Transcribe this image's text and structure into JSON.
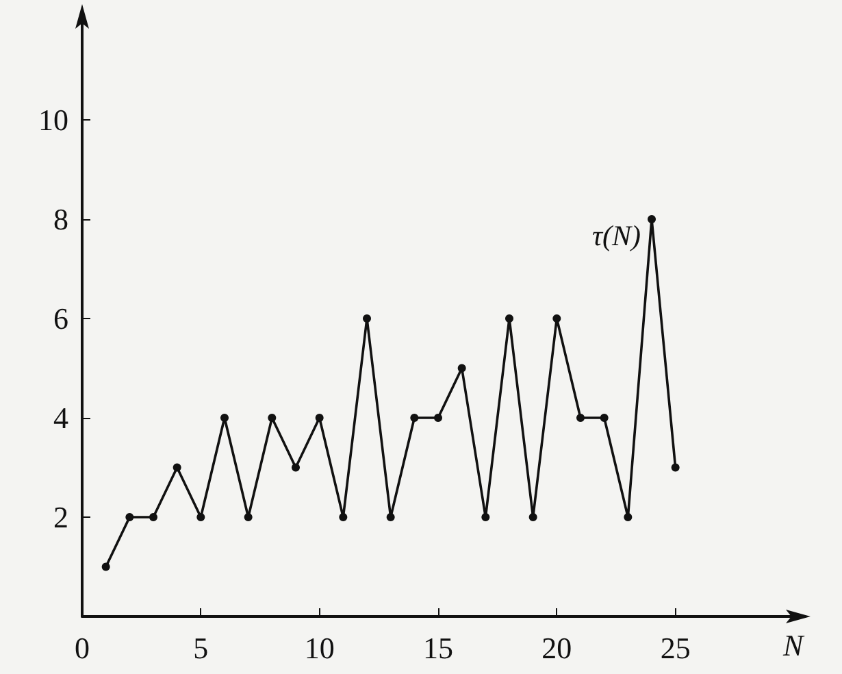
{
  "chart_data": {
    "type": "line",
    "xlabel": "N",
    "x": [
      1,
      2,
      3,
      4,
      5,
      6,
      7,
      8,
      9,
      10,
      11,
      12,
      13,
      14,
      15,
      16,
      17,
      18,
      19,
      20,
      21,
      22,
      23,
      24,
      25
    ],
    "series": [
      {
        "color": "#111111",
        "values": [
          1,
          2,
          2,
          3,
          2,
          4,
          2,
          4,
          3,
          4,
          2,
          6,
          2,
          4,
          4,
          5,
          2,
          6,
          2,
          6,
          4,
          4,
          2,
          8,
          3
        ]
      }
    ],
    "annotations": [
      {
        "text": "τ(N)",
        "x": 24,
        "y": 8
      }
    ],
    "xlim": [
      0,
      30
    ],
    "xticks": [
      0,
      5,
      10,
      15,
      20,
      25
    ],
    "ylim": [
      0,
      12
    ],
    "yticks": [
      2,
      4,
      6,
      8,
      10
    ],
    "grid": false,
    "marker": "circle",
    "line_style": "solid"
  }
}
